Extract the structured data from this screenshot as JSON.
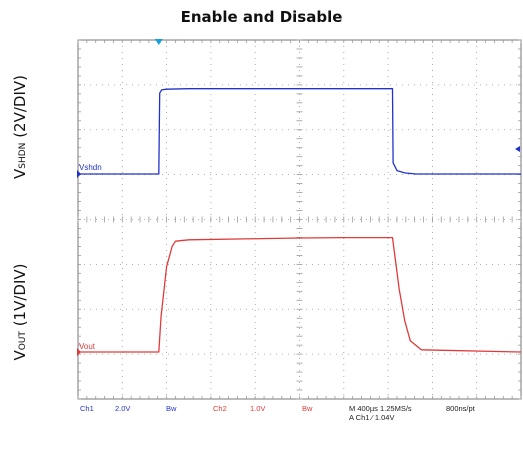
{
  "title": "Enable and Disable",
  "xlabel": "400µs/DIV",
  "ylabels": {
    "top_main": "V",
    "top_sub": "SHDN",
    "top_rest": " (2V/DIV)",
    "bottom_main": "V",
    "bottom_sub": "OUT",
    "bottom_rest": " (1V/DIV)"
  },
  "status_bar": {
    "ch1": "Ch1",
    "ch1_scale": "2.0V",
    "bw1": "Bw",
    "ch2": "Ch2",
    "ch2_scale": "1.0V",
    "bw2": "Bw",
    "timebase": "M 400µs 1.25MS/s",
    "resolution": "800ns/pt",
    "trigger": "A  Ch1  ⁄  1.04V"
  },
  "colors": {
    "ch1": "#2233cc",
    "ch2": "#e03a3a",
    "grid": "#9a9a9a",
    "frame": "#777777",
    "trigger_marker": "#1aa0e0"
  },
  "chart_data": {
    "type": "line",
    "title": "Enable and Disable",
    "xlabel": "400µs/DIV",
    "x_unit": "µs",
    "xlim": [
      0,
      4000
    ],
    "grid": true,
    "divisions": {
      "x": 10,
      "y": 8
    },
    "series": [
      {
        "name": "Vshdn",
        "volts_per_div": 2,
        "x": [
          0,
          730,
          738,
          755,
          800,
          1000,
          2000,
          2840,
          2845,
          2880,
          2950,
          3050,
          3200,
          4000
        ],
        "y": [
          0,
          0,
          3.6,
          3.75,
          3.78,
          3.8,
          3.8,
          3.8,
          0.5,
          0.15,
          0.05,
          0.0,
          0.0,
          0.0
        ]
      },
      {
        "name": "Vout",
        "volts_per_div": 1,
        "x": [
          0,
          730,
          750,
          800,
          850,
          880,
          1000,
          1500,
          2000,
          2400,
          2840,
          2900,
          2950,
          3000,
          3100,
          4000
        ],
        "y": [
          0,
          0,
          0.8,
          1.9,
          2.35,
          2.47,
          2.5,
          2.52,
          2.54,
          2.55,
          2.55,
          1.4,
          0.7,
          0.25,
          0.05,
          0.0
        ]
      }
    ],
    "trace_labels": [
      "Vshdn",
      "Vout"
    ]
  }
}
